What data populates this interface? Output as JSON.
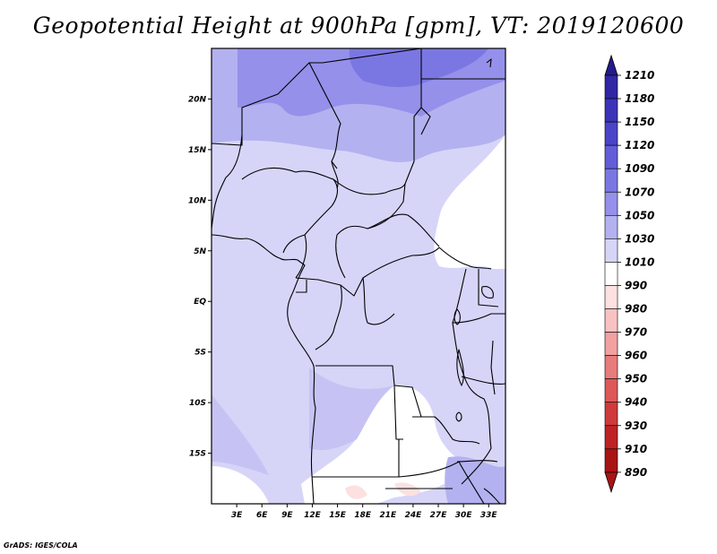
{
  "title": "Geopotential Height at 900hPa [gpm], VT: 2019120600",
  "credit": "GrADS: IGES/COLA",
  "map": {
    "lon_range": [
      0,
      35
    ],
    "lat_range": [
      -20,
      25
    ],
    "x_ticks": [
      "3E",
      "6E",
      "9E",
      "12E",
      "15E",
      "18E",
      "21E",
      "24E",
      "27E",
      "30E",
      "33E"
    ],
    "x_tick_values": [
      3,
      6,
      9,
      12,
      15,
      18,
      21,
      24,
      27,
      30,
      33
    ],
    "y_ticks": [
      "20N",
      "15N",
      "10N",
      "5N",
      "EQ",
      "5S",
      "10S",
      "15S"
    ],
    "y_tick_values": [
      20,
      15,
      10,
      5,
      0,
      -5,
      -10,
      -15
    ]
  },
  "colorbar": {
    "labels": [
      "1210",
      "1180",
      "1150",
      "1120",
      "1090",
      "1070",
      "1050",
      "1030",
      "1010",
      "990",
      "980",
      "970",
      "960",
      "950",
      "940",
      "930",
      "910",
      "890"
    ],
    "colors": [
      "#231b8c",
      "#2f27a3",
      "#3b34b8",
      "#4a44c8",
      "#625dd8",
      "#7b77e2",
      "#9590ea",
      "#b4b1f0",
      "#d6d5f8",
      "#ffffff",
      "#fde0e0",
      "#f9c2c2",
      "#f2a0a0",
      "#e87c7c",
      "#dd5858",
      "#cf3a3a",
      "#bd2323",
      "#a81414"
    ]
  }
}
